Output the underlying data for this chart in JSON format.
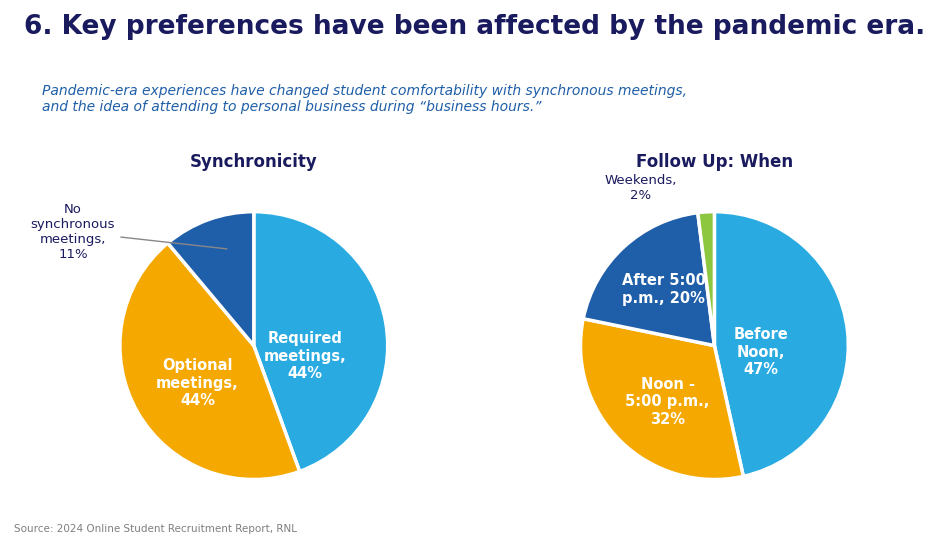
{
  "title": "6. Key preferences have been affected by the pandemic era.",
  "subtitle": "Pandemic-era experiences have changed student comfortability with synchronous meetings,\nand the idea of attending to personal business during “business hours.”",
  "source": "Source: 2024 Online Student Recruitment Report, RNL",
  "pie1_title": "Synchronicity",
  "pie1_values": [
    44,
    44,
    11
  ],
  "pie1_colors": [
    "#29ABE2",
    "#F5A800",
    "#1F5EA8"
  ],
  "pie2_title": "Follow Up: When",
  "pie2_values": [
    47,
    32,
    20,
    2
  ],
  "pie2_colors": [
    "#29ABE2",
    "#F5A800",
    "#1F5EA8",
    "#8DC63F"
  ],
  "bg_color": "#FFFFFF",
  "title_color": "#1A1A5E",
  "subtitle_color": "#1F5EA8",
  "chart_title_color": "#1A1A5E",
  "source_color": "#7F7F7F"
}
